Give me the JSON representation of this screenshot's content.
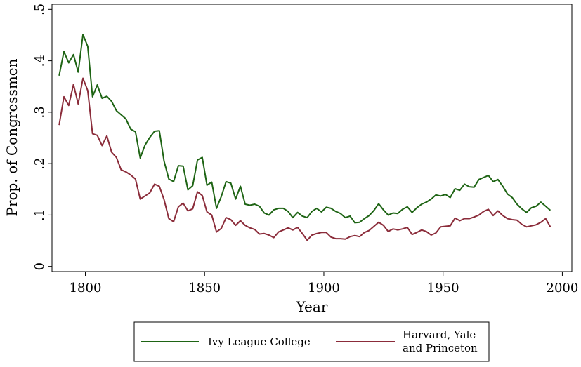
{
  "chart_data": {
    "type": "line",
    "xlabel": "Year",
    "ylabel": "Prop. of Congressmen",
    "xlim": [
      1786,
      2004
    ],
    "ylim": [
      -0.01,
      0.51
    ],
    "x_ticks": [
      1800,
      1850,
      1900,
      1950,
      2000
    ],
    "y_ticks": [
      0,
      0.1,
      0.2,
      0.3,
      0.4,
      0.5
    ],
    "y_tick_labels": [
      "0",
      ".1",
      ".2",
      ".3",
      ".4",
      ".5"
    ],
    "grid": false,
    "legend_position": "bottom",
    "series": [
      {
        "name": "Ivy League College",
        "color": "#1e6414",
        "x": [
          1789,
          1791,
          1793,
          1795,
          1797,
          1799,
          1801,
          1803,
          1805,
          1807,
          1809,
          1811,
          1813,
          1815,
          1817,
          1819,
          1821,
          1823,
          1825,
          1827,
          1829,
          1831,
          1833,
          1835,
          1837,
          1839,
          1841,
          1843,
          1845,
          1847,
          1849,
          1851,
          1853,
          1855,
          1857,
          1859,
          1861,
          1863,
          1865,
          1867,
          1869,
          1871,
          1873,
          1875,
          1877,
          1879,
          1881,
          1883,
          1885,
          1887,
          1889,
          1891,
          1893,
          1895,
          1897,
          1899,
          1901,
          1903,
          1905,
          1907,
          1909,
          1911,
          1913,
          1915,
          1917,
          1919,
          1921,
          1923,
          1925,
          1927,
          1929,
          1931,
          1933,
          1935,
          1937,
          1939,
          1941,
          1943,
          1945,
          1947,
          1949,
          1951,
          1953,
          1955,
          1957,
          1959,
          1961,
          1963,
          1965,
          1967,
          1969,
          1971,
          1973,
          1975,
          1977,
          1979,
          1981,
          1983,
          1985,
          1987,
          1989,
          1991,
          1993,
          1995
        ],
        "y": [
          0.371,
          0.418,
          0.396,
          0.412,
          0.378,
          0.451,
          0.428,
          0.33,
          0.353,
          0.327,
          0.331,
          0.321,
          0.303,
          0.295,
          0.287,
          0.267,
          0.262,
          0.211,
          0.236,
          0.251,
          0.263,
          0.264,
          0.205,
          0.17,
          0.165,
          0.196,
          0.195,
          0.149,
          0.157,
          0.207,
          0.212,
          0.158,
          0.164,
          0.113,
          0.136,
          0.165,
          0.162,
          0.131,
          0.156,
          0.121,
          0.119,
          0.121,
          0.117,
          0.104,
          0.1,
          0.11,
          0.113,
          0.113,
          0.107,
          0.095,
          0.105,
          0.098,
          0.095,
          0.107,
          0.113,
          0.106,
          0.115,
          0.113,
          0.107,
          0.103,
          0.095,
          0.098,
          0.085,
          0.086,
          0.093,
          0.099,
          0.109,
          0.122,
          0.11,
          0.1,
          0.104,
          0.103,
          0.111,
          0.116,
          0.105,
          0.114,
          0.121,
          0.125,
          0.131,
          0.139,
          0.137,
          0.14,
          0.134,
          0.151,
          0.148,
          0.16,
          0.155,
          0.154,
          0.169,
          0.173,
          0.177,
          0.165,
          0.169,
          0.156,
          0.141,
          0.134,
          0.121,
          0.112,
          0.105,
          0.114,
          0.117,
          0.125,
          0.117,
          0.109
        ]
      },
      {
        "name": "Harvard, Yale and Princeton",
        "color": "#8b2c3a",
        "x": [
          1789,
          1791,
          1793,
          1795,
          1797,
          1799,
          1801,
          1803,
          1805,
          1807,
          1809,
          1811,
          1813,
          1815,
          1817,
          1819,
          1821,
          1823,
          1825,
          1827,
          1829,
          1831,
          1833,
          1835,
          1837,
          1839,
          1841,
          1843,
          1845,
          1847,
          1849,
          1851,
          1853,
          1855,
          1857,
          1859,
          1861,
          1863,
          1865,
          1867,
          1869,
          1871,
          1873,
          1875,
          1877,
          1879,
          1881,
          1883,
          1885,
          1887,
          1889,
          1891,
          1893,
          1895,
          1897,
          1899,
          1901,
          1903,
          1905,
          1907,
          1909,
          1911,
          1913,
          1915,
          1917,
          1919,
          1921,
          1923,
          1925,
          1927,
          1929,
          1931,
          1933,
          1935,
          1937,
          1939,
          1941,
          1943,
          1945,
          1947,
          1949,
          1951,
          1953,
          1955,
          1957,
          1959,
          1961,
          1963,
          1965,
          1967,
          1969,
          1971,
          1973,
          1975,
          1977,
          1979,
          1981,
          1983,
          1985,
          1987,
          1989,
          1991,
          1993,
          1995
        ],
        "y": [
          0.275,
          0.33,
          0.313,
          0.354,
          0.316,
          0.366,
          0.342,
          0.258,
          0.255,
          0.235,
          0.254,
          0.222,
          0.212,
          0.188,
          0.184,
          0.178,
          0.17,
          0.131,
          0.137,
          0.143,
          0.16,
          0.156,
          0.13,
          0.093,
          0.087,
          0.116,
          0.123,
          0.108,
          0.112,
          0.145,
          0.138,
          0.106,
          0.1,
          0.067,
          0.074,
          0.095,
          0.091,
          0.08,
          0.089,
          0.08,
          0.075,
          0.072,
          0.063,
          0.064,
          0.061,
          0.056,
          0.067,
          0.071,
          0.075,
          0.071,
          0.076,
          0.064,
          0.051,
          0.061,
          0.064,
          0.066,
          0.066,
          0.057,
          0.054,
          0.054,
          0.053,
          0.058,
          0.06,
          0.058,
          0.066,
          0.07,
          0.078,
          0.086,
          0.08,
          0.068,
          0.073,
          0.071,
          0.073,
          0.076,
          0.062,
          0.066,
          0.071,
          0.068,
          0.061,
          0.065,
          0.077,
          0.078,
          0.079,
          0.094,
          0.089,
          0.093,
          0.093,
          0.096,
          0.1,
          0.107,
          0.111,
          0.099,
          0.108,
          0.099,
          0.093,
          0.091,
          0.09,
          0.082,
          0.077,
          0.079,
          0.081,
          0.086,
          0.093,
          0.077
        ]
      }
    ]
  },
  "legend": {
    "item1_label": "Ivy League College",
    "item2_line1": "Harvard, Yale",
    "item2_line2": "and Princeton"
  }
}
